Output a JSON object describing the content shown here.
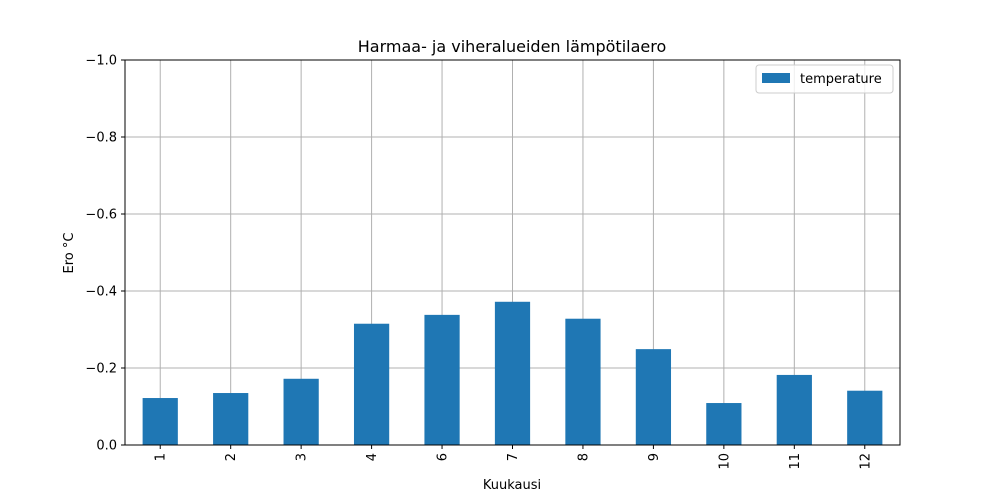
{
  "chart_data": {
    "type": "bar",
    "title": "Harmaa- ja viheralueiden lämpötilaero",
    "xlabel": "Kuukausi",
    "ylabel": "Ero °C",
    "categories": [
      "1",
      "2",
      "3",
      "4",
      "6",
      "7",
      "8",
      "9",
      "10",
      "11",
      "12"
    ],
    "series": [
      {
        "name": "temperature",
        "values": [
          -0.122,
          -0.135,
          -0.172,
          -0.315,
          -0.338,
          -0.372,
          -0.328,
          -0.249,
          -0.109,
          -0.182,
          -0.141
        ]
      }
    ],
    "ylim": [
      0.0,
      -1.0
    ],
    "y_inverted": true,
    "yticks": [
      0.0,
      -0.2,
      -0.4,
      -0.6,
      -0.8,
      -1.0
    ],
    "ytick_labels": [
      "0.0",
      "−0.2",
      "−0.4",
      "−0.6",
      "−0.8",
      "−1.0"
    ],
    "grid": true,
    "legend_position": "top-right",
    "colors": {
      "bar": "#1f77b4",
      "grid": "#b0b0b0",
      "axis": "#000000"
    }
  }
}
